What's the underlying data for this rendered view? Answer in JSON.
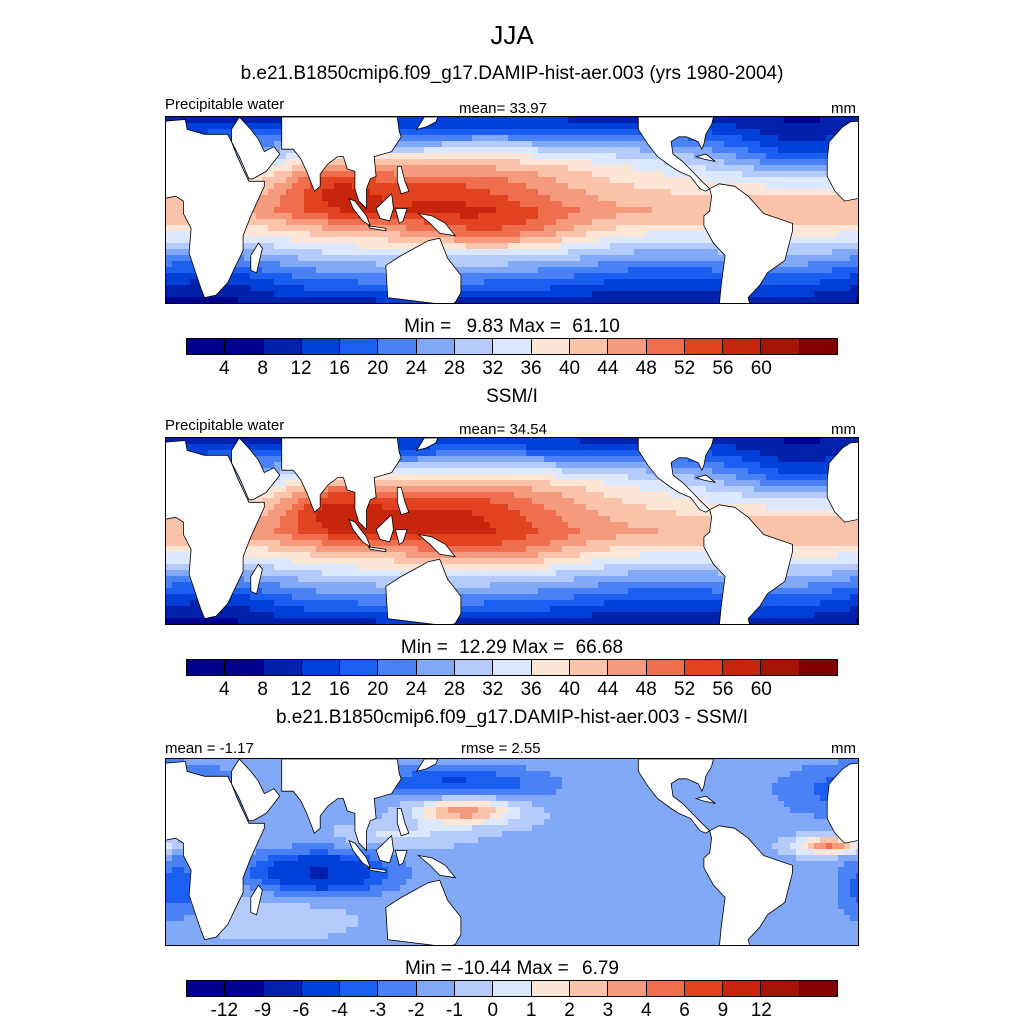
{
  "season": "JJA",
  "colors": {
    "levels_abs": [
      "#000090",
      "#0021ab",
      "#0040d8",
      "#1a5ff0",
      "#4a82f5",
      "#82a8f8",
      "#b5cbfb",
      "#dce8fd",
      "#fde6d6",
      "#fbc3aa",
      "#f59a7c",
      "#ee6e4e",
      "#e14220",
      "#c8250d",
      "#a51506",
      "#800000"
    ],
    "land": "#ffffff"
  },
  "chart_data": [
    {
      "type": "heatmap",
      "id": "model",
      "title": "b.e21.B1850cmip6.f09_g17.DAMIP-hist-aer.003 (yrs 1980-2004)",
      "left_label": "Precipitable water",
      "center_label": "mean=  33.97",
      "right_label": "mm",
      "min_label": "Min =",
      "min_value": "9.83",
      "max_label": "Max =",
      "max_value": "61.10",
      "levels": [
        "4",
        "8",
        "12",
        "16",
        "20",
        "24",
        "28",
        "32",
        "36",
        "40",
        "44",
        "48",
        "52",
        "56",
        "60"
      ],
      "mean": 33.97,
      "min": 9.83,
      "max": 61.1,
      "xrange": [
        0,
        360
      ],
      "yrange": [
        -38,
        38
      ]
    },
    {
      "type": "heatmap",
      "id": "obs",
      "title": "SSM/I",
      "left_label": "Precipitable water",
      "center_label": "mean=  34.54",
      "right_label": "mm",
      "min_label": "Min =",
      "min_value": "12.29",
      "max_label": "Max =",
      "max_value": "66.68",
      "levels": [
        "4",
        "8",
        "12",
        "16",
        "20",
        "24",
        "28",
        "32",
        "36",
        "40",
        "44",
        "48",
        "52",
        "56",
        "60"
      ],
      "mean": 34.54,
      "min": 12.29,
      "max": 66.68,
      "xrange": [
        0,
        360
      ],
      "yrange": [
        -38,
        38
      ]
    },
    {
      "type": "heatmap",
      "id": "diff",
      "title": "b.e21.B1850cmip6.f09_g17.DAMIP-hist-aer.003 - SSM/I",
      "left_label": "mean =  -1.17",
      "center_label": "rmse =   2.55",
      "right_label": "mm",
      "min_label": "Min =",
      "min_value": "-10.44",
      "max_label": "Max =",
      "max_value": "6.79",
      "levels": [
        "-12",
        "-9",
        "-6",
        "-4",
        "-3",
        "-2",
        "-1",
        "0",
        "1",
        "2",
        "3",
        "4",
        "6",
        "9",
        "12"
      ],
      "mean": -1.17,
      "rmse": 2.55,
      "min": -10.44,
      "max": 6.79,
      "xrange": [
        0,
        360
      ],
      "yrange": [
        -38,
        38
      ]
    }
  ]
}
